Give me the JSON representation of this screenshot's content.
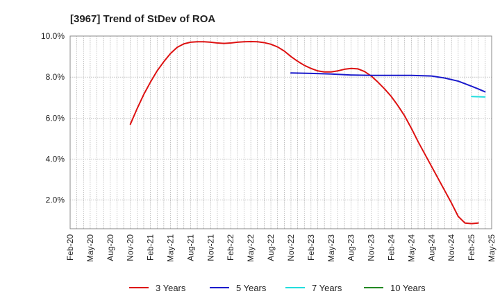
{
  "chart_data": {
    "type": "line",
    "title": "[3967]  Trend of StDev of ROA",
    "x_ticks": [
      "Feb-20",
      "May-20",
      "Aug-20",
      "Nov-20",
      "Feb-21",
      "May-21",
      "Aug-21",
      "Nov-21",
      "Feb-22",
      "May-22",
      "Aug-22",
      "Nov-22",
      "Feb-23",
      "May-23",
      "Aug-23",
      "Nov-23",
      "Feb-24",
      "May-24",
      "Aug-24",
      "Nov-24",
      "Feb-25",
      "May-25"
    ],
    "y_ticks": [
      "2.0%",
      "4.0%",
      "6.0%",
      "8.0%",
      "10.0%"
    ],
    "y_tick_values": [
      2,
      4,
      6,
      8,
      10
    ],
    "ylim": [
      0.6,
      10.0
    ],
    "grid": true,
    "legend_position": "bottom",
    "series": [
      {
        "name": "3 Years",
        "color": "#dd1111",
        "points": [
          [
            "Nov-20",
            5.7
          ],
          [
            "Dec-20",
            6.45
          ],
          [
            "Jan-21",
            7.15
          ],
          [
            "Feb-21",
            7.75
          ],
          [
            "Mar-21",
            8.3
          ],
          [
            "Apr-21",
            8.75
          ],
          [
            "May-21",
            9.15
          ],
          [
            "Jun-21",
            9.45
          ],
          [
            "Jul-21",
            9.62
          ],
          [
            "Aug-21",
            9.7
          ],
          [
            "Sep-21",
            9.72
          ],
          [
            "Oct-21",
            9.72
          ],
          [
            "Nov-21",
            9.7
          ],
          [
            "Dec-21",
            9.66
          ],
          [
            "Jan-22",
            9.64
          ],
          [
            "Feb-22",
            9.66
          ],
          [
            "Mar-22",
            9.7
          ],
          [
            "Apr-22",
            9.72
          ],
          [
            "May-22",
            9.73
          ],
          [
            "Jun-22",
            9.72
          ],
          [
            "Jul-22",
            9.68
          ],
          [
            "Aug-22",
            9.6
          ],
          [
            "Sep-22",
            9.47
          ],
          [
            "Oct-22",
            9.27
          ],
          [
            "Nov-22",
            9.0
          ],
          [
            "Dec-22",
            8.77
          ],
          [
            "Jan-23",
            8.57
          ],
          [
            "Feb-23",
            8.42
          ],
          [
            "Mar-23",
            8.3
          ],
          [
            "Apr-23",
            8.25
          ],
          [
            "May-23",
            8.25
          ],
          [
            "Jun-23",
            8.3
          ],
          [
            "Jul-23",
            8.38
          ],
          [
            "Aug-23",
            8.42
          ],
          [
            "Sep-23",
            8.4
          ],
          [
            "Oct-23",
            8.27
          ],
          [
            "Nov-23",
            8.05
          ],
          [
            "Dec-23",
            7.75
          ],
          [
            "Jan-24",
            7.42
          ],
          [
            "Feb-24",
            7.05
          ],
          [
            "Mar-24",
            6.6
          ],
          [
            "Apr-24",
            6.1
          ],
          [
            "May-24",
            5.5
          ],
          [
            "Jun-24",
            4.85
          ],
          [
            "Jul-24",
            4.25
          ],
          [
            "Aug-24",
            3.65
          ],
          [
            "Sep-24",
            3.05
          ],
          [
            "Oct-24",
            2.45
          ],
          [
            "Nov-24",
            1.85
          ],
          [
            "Dec-24",
            1.2
          ],
          [
            "Jan-25",
            0.88
          ],
          [
            "Feb-25",
            0.85
          ],
          [
            "Mar-25",
            0.88
          ]
        ]
      },
      {
        "name": "5 Years",
        "color": "#1a1acc",
        "points": [
          [
            "Nov-22",
            8.2
          ],
          [
            "Feb-23",
            8.18
          ],
          [
            "May-23",
            8.15
          ],
          [
            "Aug-23",
            8.1
          ],
          [
            "Nov-23",
            8.08
          ],
          [
            "Feb-24",
            8.08
          ],
          [
            "May-24",
            8.08
          ],
          [
            "Aug-24",
            8.05
          ],
          [
            "Oct-24",
            7.95
          ],
          [
            "Dec-24",
            7.8
          ],
          [
            "Feb-25",
            7.55
          ],
          [
            "Mar-25",
            7.42
          ],
          [
            "Apr-25",
            7.28
          ]
        ]
      },
      {
        "name": "7 Years",
        "color": "#22dddd",
        "points": [
          [
            "Feb-25",
            7.05
          ],
          [
            "Apr-25",
            7.03
          ]
        ]
      },
      {
        "name": "10 Years",
        "color": "#228822",
        "points": []
      }
    ]
  }
}
